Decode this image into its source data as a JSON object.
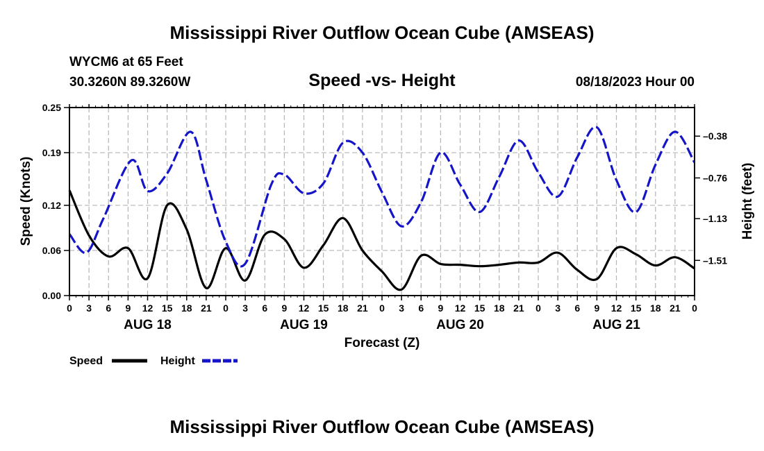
{
  "page": {
    "main_title": "Mississippi River Outflow Ocean Cube (AMSEAS)",
    "footer_title": "Mississippi River Outflow Ocean Cube (AMSEAS)",
    "station": "WYCM6 at 65 Feet",
    "coords": "30.3260N  89.3260W",
    "date": "08/18/2023 Hour 00"
  },
  "legend": {
    "speed_label": "Speed",
    "height_label": "Height"
  },
  "colors": {
    "speed": "#000000",
    "height": "#1414c8",
    "grid": "#b4b4b4"
  },
  "chart_data": {
    "type": "line",
    "title": "Speed -vs- Height",
    "xlabel": "Forecast (Z)",
    "ylabel": "Speed (Knots)",
    "y2label": "Height (feet)",
    "xlim": [
      0,
      96
    ],
    "ylim": [
      0,
      0.25
    ],
    "y2lim": [
      -1.83,
      -0.12
    ],
    "x_tick_labels": [
      "0",
      "3",
      "6",
      "9",
      "12",
      "15",
      "18",
      "21",
      "0",
      "3",
      "6",
      "9",
      "12",
      "15",
      "18",
      "21",
      "0",
      "3",
      "6",
      "9",
      "12",
      "15",
      "18",
      "21",
      "0",
      "3",
      "6",
      "9",
      "12",
      "15",
      "18",
      "21",
      "0"
    ],
    "y_ticks": [
      0.0,
      0.06,
      0.12,
      0.19,
      0.25
    ],
    "y_tick_labels": [
      "0.00",
      "0.06",
      "0.12",
      "0.19",
      "0.25"
    ],
    "y2_ticks": [
      -0.38,
      -0.76,
      -1.13,
      -1.51
    ],
    "y2_tick_labels": [
      "-0.38",
      "-0.76",
      "-1.13",
      "-1.51"
    ],
    "day_labels": [
      {
        "x": 12,
        "label": "AUG 18"
      },
      {
        "x": 36,
        "label": "AUG 19"
      },
      {
        "x": 60,
        "label": "AUG 20"
      },
      {
        "x": 84,
        "label": "AUG 21"
      }
    ],
    "series": [
      {
        "name": "Speed",
        "axis": "left",
        "style": "solid",
        "x": [
          0,
          3,
          6,
          9,
          12,
          15,
          18,
          21,
          24,
          27,
          30,
          33,
          36,
          39,
          42,
          45,
          48,
          51,
          54,
          57,
          60,
          63,
          66,
          69,
          72,
          75,
          78,
          81,
          84,
          87,
          90,
          93,
          96
        ],
        "values": [
          0.14,
          0.08,
          0.052,
          0.063,
          0.023,
          0.12,
          0.088,
          0.01,
          0.063,
          0.02,
          0.081,
          0.075,
          0.037,
          0.067,
          0.103,
          0.06,
          0.032,
          0.008,
          0.053,
          0.042,
          0.041,
          0.039,
          0.041,
          0.044,
          0.044,
          0.057,
          0.034,
          0.022,
          0.063,
          0.055,
          0.04,
          0.051,
          0.036
        ]
      },
      {
        "name": "Height",
        "axis": "right",
        "style": "dashed",
        "x": [
          0,
          2.6,
          5.2,
          9.5,
          12,
          15,
          18.6,
          21,
          24,
          27,
          31,
          33,
          36,
          39,
          42,
          45,
          48,
          51,
          54,
          57,
          60,
          63,
          66,
          69,
          72,
          75,
          78,
          81,
          84,
          87,
          90,
          93,
          96
        ],
        "values": [
          -1.27,
          -1.44,
          -1.13,
          -0.6,
          -0.88,
          -0.72,
          -0.34,
          -0.78,
          -1.34,
          -1.54,
          -0.82,
          -0.73,
          -0.9,
          -0.81,
          -0.44,
          -0.53,
          -0.89,
          -1.2,
          -0.98,
          -0.53,
          -0.82,
          -1.07,
          -0.75,
          -0.42,
          -0.71,
          -0.93,
          -0.57,
          -0.3,
          -0.78,
          -1.07,
          -0.64,
          -0.34,
          -0.62
        ]
      }
    ]
  }
}
